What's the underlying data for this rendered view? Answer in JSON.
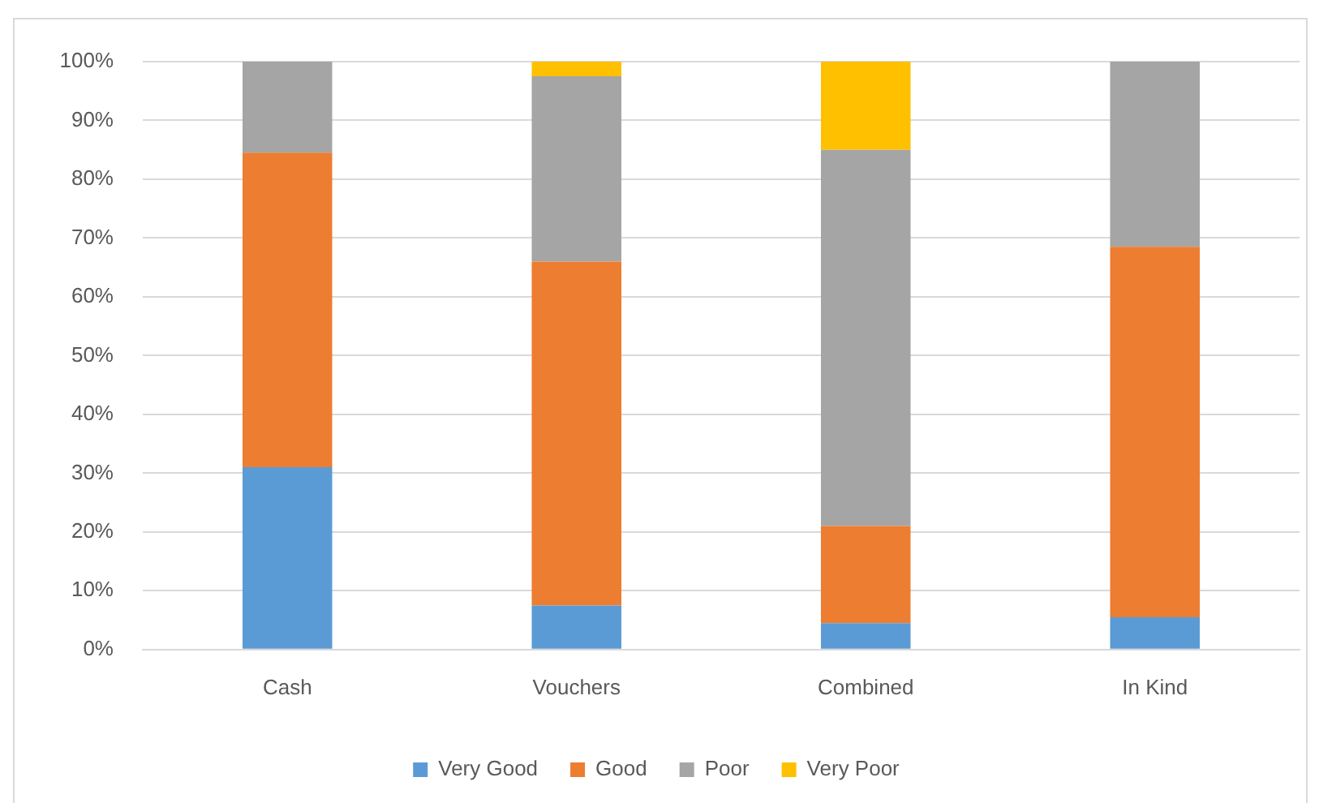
{
  "chart_data": {
    "type": "bar",
    "stacked": true,
    "categories": [
      "Cash",
      "Vouchers",
      "Combined",
      "In Kind"
    ],
    "series": [
      {
        "name": "Very Good",
        "color": "#5b9bd5",
        "values": [
          31,
          7.5,
          4.5,
          5.5
        ]
      },
      {
        "name": "Good",
        "color": "#ed7d31",
        "values": [
          53.5,
          58.5,
          16.5,
          63
        ]
      },
      {
        "name": "Poor",
        "color": "#a5a5a5",
        "values": [
          15.5,
          31.5,
          64,
          31.5
        ]
      },
      {
        "name": "Very Poor",
        "color": "#ffc000",
        "values": [
          0,
          2.5,
          15,
          0
        ]
      }
    ],
    "ylim": [
      0,
      100
    ],
    "yticks": [
      {
        "value": 0,
        "label": "0%"
      },
      {
        "value": 10,
        "label": "10%"
      },
      {
        "value": 20,
        "label": "20%"
      },
      {
        "value": 30,
        "label": "30%"
      },
      {
        "value": 40,
        "label": "40%"
      },
      {
        "value": 50,
        "label": "50%"
      },
      {
        "value": 60,
        "label": "60%"
      },
      {
        "value": 70,
        "label": "70%"
      },
      {
        "value": 80,
        "label": "80%"
      },
      {
        "value": 90,
        "label": "90%"
      },
      {
        "value": 100,
        "label": "100%"
      }
    ],
    "grid": "y",
    "legend": "bottom"
  }
}
